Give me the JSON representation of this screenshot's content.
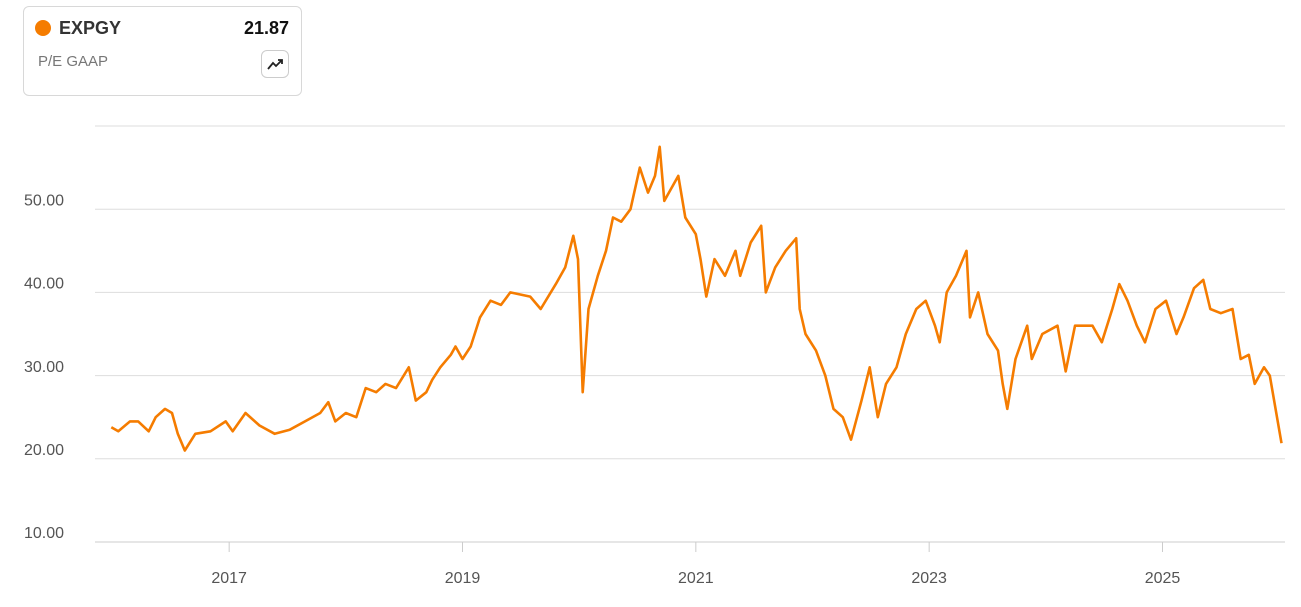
{
  "chart_data": {
    "type": "line",
    "legend": {
      "name": "EXPGY",
      "value_label": "21.87",
      "metric": "P/E GAAP"
    },
    "series": [
      {
        "name": "EXPGY",
        "color": "#f57c00",
        "x": [
          2015.99,
          2016.05,
          2016.15,
          2016.22,
          2016.31,
          2016.37,
          2016.45,
          2016.51,
          2016.56,
          2016.62,
          2016.71,
          2016.84,
          2016.97,
          2017.03,
          2017.14,
          2017.26,
          2017.39,
          2017.52,
          2017.65,
          2017.78,
          2017.85,
          2017.91,
          2018.0,
          2018.09,
          2018.17,
          2018.26,
          2018.34,
          2018.43,
          2018.54,
          2018.6,
          2018.69,
          2018.74,
          2018.81,
          2018.9,
          2018.94,
          2019.0,
          2019.07,
          2019.15,
          2019.24,
          2019.33,
          2019.41,
          2019.58,
          2019.67,
          2019.8,
          2019.88,
          2019.95,
          2019.99,
          2020.03,
          2020.08,
          2020.16,
          2020.23,
          2020.29,
          2020.36,
          2020.44,
          2020.52,
          2020.59,
          2020.65,
          2020.69,
          2020.73,
          2020.85,
          2020.91,
          2021.0,
          2021.04,
          2021.09,
          2021.16,
          2021.25,
          2021.34,
          2021.38,
          2021.47,
          2021.56,
          2021.6,
          2021.68,
          2021.77,
          2021.86,
          2021.89,
          2021.94,
          2022.03,
          2022.11,
          2022.18,
          2022.26,
          2022.33,
          2022.42,
          2022.49,
          2022.56,
          2022.63,
          2022.72,
          2022.8,
          2022.89,
          2022.97,
          2023.05,
          2023.09,
          2023.15,
          2023.23,
          2023.32,
          2023.35,
          2023.42,
          2023.5,
          2023.59,
          2023.63,
          2023.67,
          2023.74,
          2023.84,
          2023.88,
          2023.97,
          2024.1,
          2024.17,
          2024.25,
          2024.4,
          2024.48,
          2024.57,
          2024.63,
          2024.7,
          2024.78,
          2024.85,
          2024.94,
          2025.03,
          2025.12,
          2025.18,
          2025.27,
          2025.35,
          2025.41,
          2025.5,
          2025.6,
          2025.67,
          2025.74,
          2025.79,
          2025.87,
          2025.92,
          2026.02
        ],
        "values": [
          23.8,
          23.3,
          24.5,
          24.5,
          23.3,
          25,
          26,
          25.5,
          23,
          21,
          23,
          23.3,
          24.5,
          23.3,
          25.5,
          24,
          23,
          23.5,
          24.5,
          25.5,
          26.8,
          24.5,
          25.5,
          25,
          28.5,
          28,
          29,
          28.5,
          31,
          27,
          28,
          29.5,
          31,
          32.5,
          33.5,
          32,
          33.5,
          37,
          39,
          38.5,
          40,
          39.5,
          38,
          41,
          43,
          46.8,
          44,
          28,
          38,
          42,
          45,
          49,
          48.5,
          50,
          55,
          52,
          54,
          57.5,
          51,
          54,
          49,
          47,
          44,
          39.5,
          44,
          42,
          45,
          42,
          46,
          48,
          40,
          43,
          45,
          46.5,
          38,
          35,
          33,
          30,
          26,
          25,
          22.3,
          27,
          31,
          25,
          29,
          31,
          35,
          38,
          39,
          36,
          34,
          40,
          42,
          45,
          37,
          40,
          35,
          33,
          29,
          26,
          32,
          36,
          32,
          35,
          36,
          30.5,
          36,
          36,
          34,
          38,
          41,
          39,
          36,
          34,
          38,
          39,
          35,
          37,
          40.5,
          41.5,
          38,
          37.5,
          38,
          32,
          32.5,
          29,
          31,
          30,
          21.87
        ]
      }
    ],
    "xlim": [
      2015.85,
      2026.05
    ],
    "xticks": [
      2017,
      2019,
      2021,
      2023,
      2025
    ],
    "ylim": [
      10,
      60
    ],
    "yticks": [
      {
        "value": 10,
        "label": "10.00"
      },
      {
        "value": 20,
        "label": "20.00"
      },
      {
        "value": 30,
        "label": "30.00"
      },
      {
        "value": 40,
        "label": "40.00"
      },
      {
        "value": 50,
        "label": "50.00"
      }
    ],
    "grid": true
  }
}
